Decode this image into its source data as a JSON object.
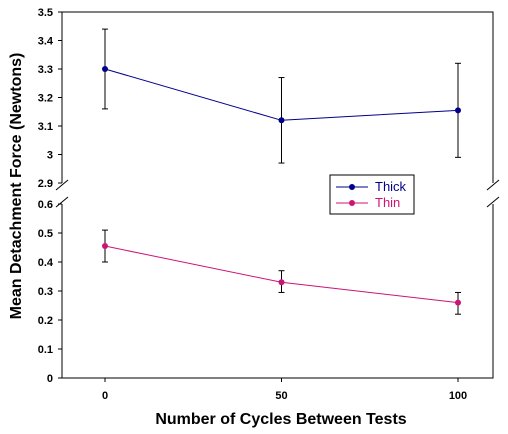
{
  "chart_data": {
    "type": "line",
    "title": "",
    "xlabel": "Number of Cycles Between Tests",
    "ylabel": "Mean Detachment Force (Newtons)",
    "x": [
      0,
      50,
      100
    ],
    "x_ticks": [
      "0",
      "50",
      "100"
    ],
    "axis_break": true,
    "upper_panel": {
      "ylim": [
        2.9,
        3.5
      ],
      "y_ticks": [
        "2.9",
        "3",
        "3.1",
        "3.2",
        "3.3",
        "3.4",
        "3.5"
      ]
    },
    "lower_panel": {
      "ylim": [
        0,
        0.6
      ],
      "y_ticks": [
        "0",
        "0.1",
        "0.2",
        "0.3",
        "0.4",
        "0.5",
        "0.6"
      ]
    },
    "grid": false,
    "legend_position": "center-right",
    "series": [
      {
        "name": "Thick",
        "color": "#00008b",
        "panel": "upper",
        "values": [
          3.3,
          3.12,
          3.155
        ],
        "error_low": [
          3.16,
          2.97,
          2.99
        ],
        "error_high": [
          3.44,
          3.27,
          3.32
        ]
      },
      {
        "name": "Thin",
        "color": "#cc1477",
        "panel": "lower",
        "values": [
          0.455,
          0.33,
          0.26
        ],
        "error_low": [
          0.4,
          0.295,
          0.22
        ],
        "error_high": [
          0.51,
          0.37,
          0.295
        ]
      }
    ]
  }
}
